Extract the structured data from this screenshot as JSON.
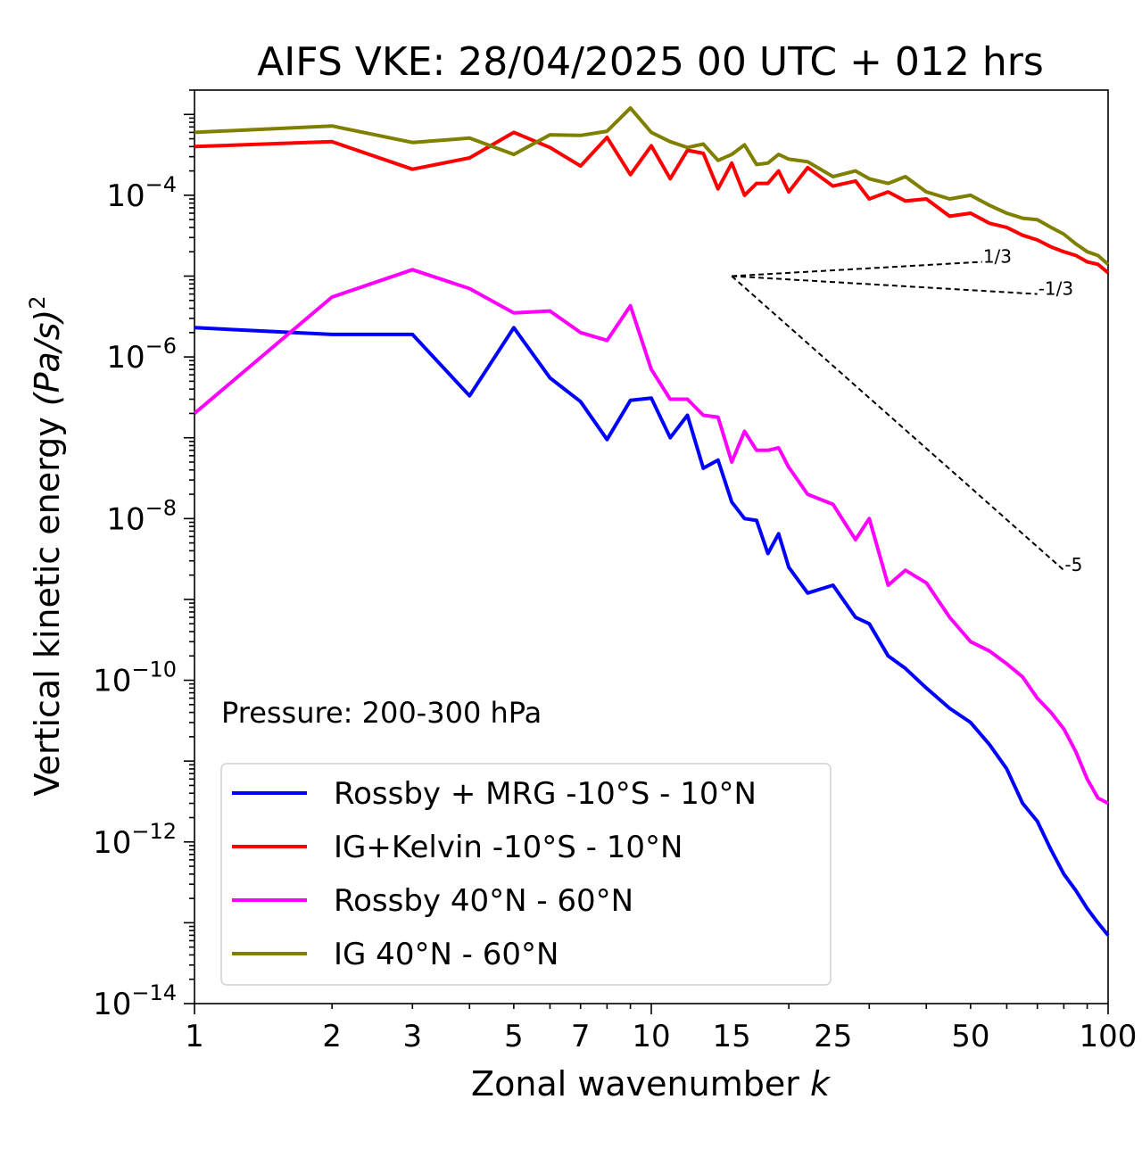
{
  "chart_data": {
    "type": "line",
    "title": "AIFS VKE: 28/04/2025 00 UTC + 012 hrs",
    "xlabel": "Zonal wavenumber",
    "xlabel_italic": "k",
    "ylabel": "Vertical kinetic energy",
    "ylabel_unit": "(Pa/s)",
    "ylabel_unit_exponent": "2",
    "x_scale": "log",
    "y_scale": "log",
    "xlim": [
      1,
      100
    ],
    "ylim": [
      1e-14,
      0.002
    ],
    "x_ticks": [
      1,
      2,
      3,
      5,
      7,
      10,
      15,
      25,
      50,
      100
    ],
    "y_ticks": [
      {
        "value": 0.0001,
        "base": "10",
        "exp": "−4"
      },
      {
        "value": 1e-06,
        "base": "10",
        "exp": "−6"
      },
      {
        "value": 1e-08,
        "base": "10",
        "exp": "−8"
      },
      {
        "value": 1e-10,
        "base": "10",
        "exp": "−10"
      },
      {
        "value": 1e-12,
        "base": "10",
        "exp": "−12"
      },
      {
        "value": 1e-14,
        "base": "10",
        "exp": "−14"
      }
    ],
    "grid": false,
    "legend_position": "lower-left",
    "annotation": "Pressure: 200-300 hPa",
    "series": [
      {
        "name": "Rossby + MRG -10°S - 10°N",
        "color": "#0000ff",
        "x": [
          1,
          2,
          3,
          4,
          5,
          6,
          7,
          8,
          9,
          10,
          11,
          12,
          13,
          14,
          15,
          16,
          17,
          18,
          19,
          20,
          22,
          25,
          28,
          30,
          33,
          36,
          40,
          45,
          50,
          55,
          60,
          65,
          70,
          75,
          80,
          85,
          90,
          95,
          100
        ],
        "y": [
          2.3e-06,
          1.9e-06,
          1.9e-06,
          3.3e-07,
          2.3e-06,
          5.5e-07,
          2.8e-07,
          9.5e-08,
          2.9e-07,
          3.1e-07,
          1e-07,
          1.9e-07,
          4.2e-08,
          5.3e-08,
          1.6e-08,
          1e-08,
          9.5e-09,
          3.7e-09,
          6.5e-09,
          2.5e-09,
          1.2e-09,
          1.5e-09,
          6e-10,
          5e-10,
          2e-10,
          1.4e-10,
          8e-11,
          4.5e-11,
          3e-11,
          1.6e-11,
          8e-12,
          3e-12,
          1.8e-12,
          8e-13,
          4e-13,
          2.5e-13,
          1.5e-13,
          1e-13,
          7e-14
        ]
      },
      {
        "name": "IG+Kelvin -10°S - 10°N",
        "color": "#ff0000",
        "x": [
          1,
          2,
          3,
          4,
          5,
          6,
          7,
          8,
          9,
          10,
          11,
          12,
          13,
          14,
          15,
          16,
          17,
          18,
          19,
          20,
          22,
          25,
          28,
          30,
          33,
          36,
          40,
          45,
          50,
          55,
          60,
          65,
          70,
          75,
          80,
          85,
          90,
          95,
          100
        ],
        "y": [
          0.0004,
          0.00046,
          0.00021,
          0.00029,
          0.0006,
          0.00039,
          0.00023,
          0.00052,
          0.00018,
          0.00041,
          0.00016,
          0.00036,
          0.00033,
          0.00012,
          0.00025,
          0.0001,
          0.00014,
          0.00014,
          0.0002,
          0.00011,
          0.00022,
          0.00013,
          0.00015,
          9e-05,
          0.00011,
          8.5e-05,
          9e-05,
          5.5e-05,
          6e-05,
          4.5e-05,
          4e-05,
          3.2e-05,
          2.8e-05,
          2.3e-05,
          2e-05,
          1.8e-05,
          1.5e-05,
          1.4e-05,
          1.1e-05
        ]
      },
      {
        "name": "Rossby 40°N - 60°N",
        "color": "#ff00ff",
        "x": [
          1,
          2,
          3,
          4,
          5,
          6,
          7,
          8,
          9,
          10,
          11,
          12,
          13,
          14,
          15,
          16,
          17,
          18,
          19,
          20,
          22,
          25,
          28,
          30,
          33,
          36,
          40,
          45,
          50,
          55,
          60,
          65,
          70,
          75,
          80,
          85,
          90,
          95,
          100
        ],
        "y": [
          2e-07,
          5.5e-06,
          1.2e-05,
          7e-06,
          3.5e-06,
          3.7e-06,
          2e-06,
          1.6e-06,
          4.3e-06,
          7e-07,
          3e-07,
          3e-07,
          1.9e-07,
          1.8e-07,
          5e-08,
          1.2e-07,
          7e-08,
          7e-08,
          7.5e-08,
          4.3e-08,
          2e-08,
          1.5e-08,
          5.5e-09,
          1e-08,
          1.5e-09,
          2.3e-09,
          1.6e-09,
          6e-10,
          3e-10,
          2.3e-10,
          1.6e-10,
          1.1e-10,
          6e-11,
          4e-11,
          2.5e-11,
          1.3e-11,
          6e-12,
          3.5e-12,
          3e-12
        ]
      },
      {
        "name": "IG 40°N - 60°N",
        "color": "#808000",
        "x": [
          1,
          2,
          3,
          4,
          5,
          6,
          7,
          8,
          9,
          10,
          11,
          12,
          13,
          14,
          15,
          16,
          17,
          18,
          19,
          20,
          22,
          25,
          28,
          30,
          33,
          36,
          40,
          45,
          50,
          55,
          60,
          65,
          70,
          75,
          80,
          85,
          90,
          95,
          100
        ],
        "y": [
          0.0006,
          0.00072,
          0.00045,
          0.00051,
          0.00032,
          0.00056,
          0.00055,
          0.00062,
          0.0012,
          0.0006,
          0.00046,
          0.00039,
          0.00043,
          0.00027,
          0.00032,
          0.00042,
          0.00024,
          0.00025,
          0.00032,
          0.00028,
          0.00026,
          0.00017,
          0.0002,
          0.00016,
          0.00014,
          0.00017,
          0.00011,
          9e-05,
          0.0001,
          7.5e-05,
          6e-05,
          5.2e-05,
          5e-05,
          4e-05,
          3.3e-05,
          2.5e-05,
          2e-05,
          1.8e-05,
          1.4e-05
        ]
      }
    ],
    "slope_lines": [
      {
        "label": "1/3",
        "x": [
          15,
          53
        ],
        "y": [
          1e-05,
          1.5e-05
        ]
      },
      {
        "label": "-1/3",
        "x": [
          15,
          70
        ],
        "y": [
          1e-05,
          6e-06
        ]
      },
      {
        "label": "-5",
        "x": [
          15,
          80
        ],
        "y": [
          1e-05,
          2.3e-09
        ]
      }
    ]
  }
}
